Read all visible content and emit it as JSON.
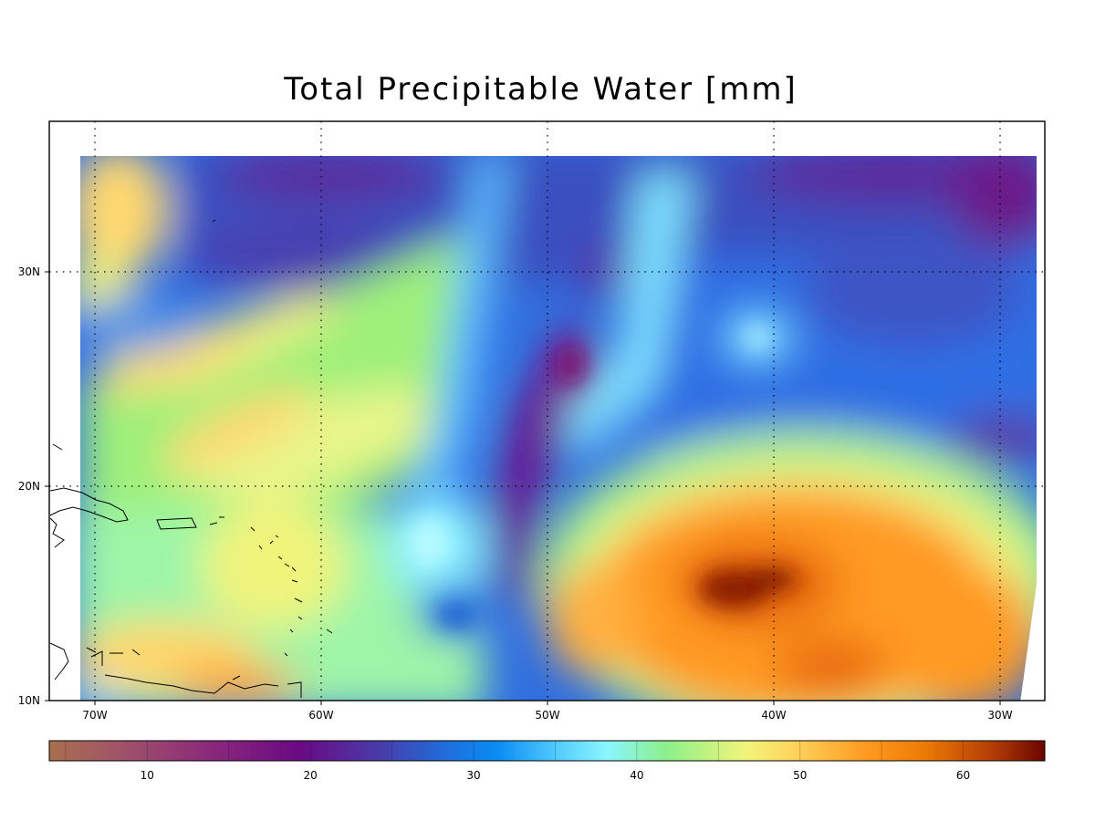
{
  "title": "Total Precipitable Water [mm]",
  "map": {
    "lon_range": [
      -72,
      -28
    ],
    "lat_range": [
      10,
      37
    ],
    "lon_ticks": [
      "70W",
      "60W",
      "50W",
      "40W",
      "30W"
    ],
    "lat_ticks": [
      "10N",
      "20N",
      "30N"
    ],
    "gridlines": "dotted"
  },
  "colorbar": {
    "range": [
      4,
      65
    ],
    "tick_labels": [
      "10",
      "20",
      "30",
      "40",
      "50",
      "60"
    ],
    "colors": [
      "#a8704e",
      "#a05468",
      "#8b2a7a",
      "#6a0a82",
      "#4a3aa8",
      "#1f6fdc",
      "#0a8cf5",
      "#5ed5ff",
      "#8af6ff",
      "#8cf08a",
      "#f2f57a",
      "#ffd25a",
      "#ff9a20",
      "#ec7a05",
      "#b03a06",
      "#6a0500"
    ]
  }
}
